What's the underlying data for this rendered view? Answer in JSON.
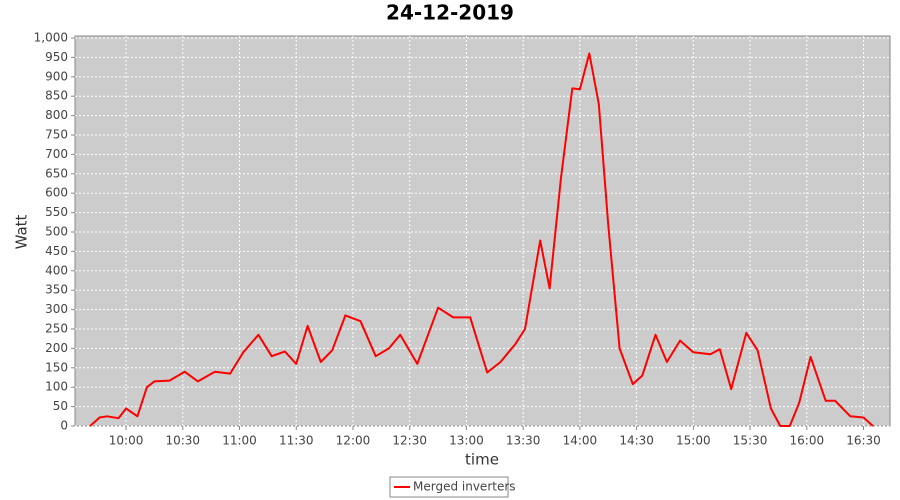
{
  "chart_data": {
    "type": "line",
    "title": "24-12-2019",
    "x_label": "time",
    "y_label": "Watt",
    "x": [
      "09:41",
      "09:46",
      "09:50",
      "09:56",
      "10:00",
      "10:06",
      "10:11",
      "10:15",
      "10:23",
      "10:31",
      "10:38",
      "10:47",
      "10:55",
      "11:02",
      "11:10",
      "11:17",
      "11:24",
      "11:30",
      "11:36",
      "11:43",
      "11:49",
      "11:56",
      "12:04",
      "12:12",
      "12:19",
      "12:25",
      "12:34",
      "12:45",
      "12:53",
      "13:02",
      "13:11",
      "13:18",
      "13:26",
      "13:31",
      "13:39",
      "13:44",
      "13:50",
      "13:56",
      "14:00",
      "14:05",
      "14:10",
      "14:15",
      "14:21",
      "14:28",
      "14:33",
      "14:40",
      "14:46",
      "14:53",
      "15:00",
      "15:09",
      "15:14",
      "15:20",
      "15:28",
      "15:34",
      "15:41",
      "15:46",
      "15:51",
      "15:56",
      "16:02",
      "16:10",
      "16:15",
      "16:23",
      "16:30",
      "16:35"
    ],
    "series": [
      {
        "name": "Merged inverters",
        "color": "#ff0000",
        "values": [
          0,
          22,
          25,
          20,
          45,
          25,
          100,
          115,
          117,
          140,
          115,
          140,
          135,
          190,
          235,
          180,
          192,
          160,
          258,
          165,
          195,
          285,
          270,
          180,
          200,
          235,
          160,
          305,
          280,
          280,
          138,
          165,
          212,
          250,
          478,
          355,
          640,
          870,
          868,
          960,
          830,
          520,
          200,
          108,
          130,
          235,
          165,
          220,
          190,
          185,
          198,
          95,
          240,
          195,
          45,
          0,
          0,
          60,
          178,
          65,
          65,
          25,
          22,
          0
        ]
      }
    ],
    "xlim": [
      "09:33",
      "16:44"
    ],
    "xticks": [
      "10:00",
      "10:30",
      "11:00",
      "11:30",
      "12:00",
      "12:30",
      "13:00",
      "13:30",
      "14:00",
      "14:30",
      "15:00",
      "15:30",
      "16:00",
      "16:30"
    ],
    "ylim": [
      0,
      1000
    ],
    "yticks": [
      0,
      50,
      100,
      150,
      200,
      250,
      300,
      350,
      400,
      450,
      500,
      550,
      600,
      650,
      700,
      750,
      800,
      850,
      900,
      950,
      {
        "value": 1000,
        "label": "1,000"
      }
    ],
    "grid": true,
    "legend": "bottom"
  }
}
